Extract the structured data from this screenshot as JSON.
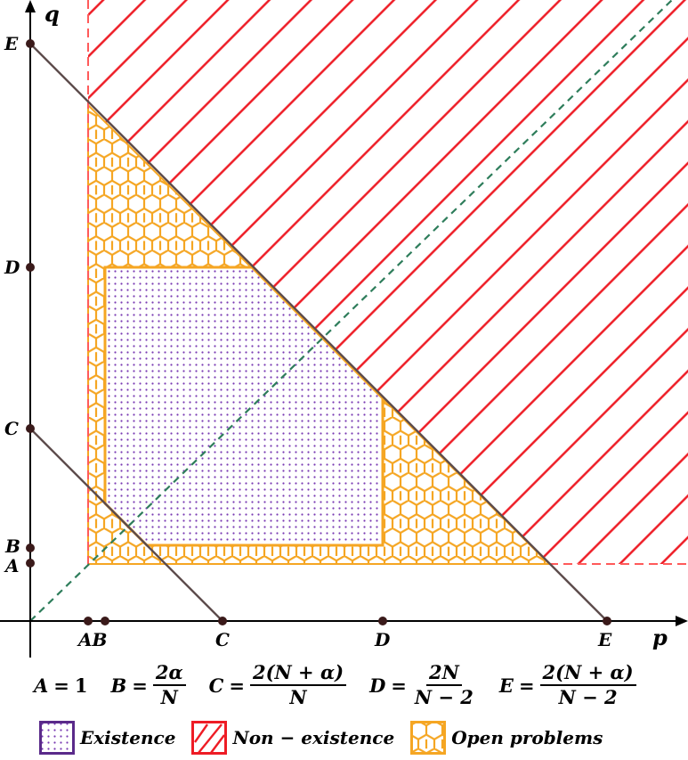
{
  "axes": {
    "x_label": "p",
    "y_label": "q"
  },
  "points": [
    {
      "id": "A",
      "label": "A",
      "value": 1
    },
    {
      "id": "B",
      "label": "B",
      "value": 1.2
    },
    {
      "id": "C",
      "label": "C",
      "value": 3.2
    },
    {
      "id": "D",
      "label": "D",
      "value": 5.6
    },
    {
      "id": "E",
      "label": "E",
      "value": 9
    }
  ],
  "x_tick_combined_label": "AB",
  "definitions": [
    {
      "var": "A",
      "eq": "=",
      "value": "1"
    },
    {
      "var": "B",
      "eq": "=",
      "num": "2α",
      "den": "N"
    },
    {
      "var": "C",
      "eq": "=",
      "num": "2(N + α)",
      "den": "N"
    },
    {
      "var": "D",
      "eq": "=",
      "num": "2N",
      "den": "N − 2"
    },
    {
      "var": "E",
      "eq": "=",
      "num": "2(N + α)",
      "den": "N − 2"
    }
  ],
  "legend": {
    "existence": "Existence",
    "non_existence": "Non − existence",
    "open_problems": "Open problems"
  },
  "colors": {
    "existence": "#7a3bb3",
    "existence_border": "#5a2a8a",
    "non_existence": "#ee1c25",
    "open_problems": "#f5a623",
    "lines": "#5d4c4c",
    "diagonal": "#2e7d5b"
  }
}
